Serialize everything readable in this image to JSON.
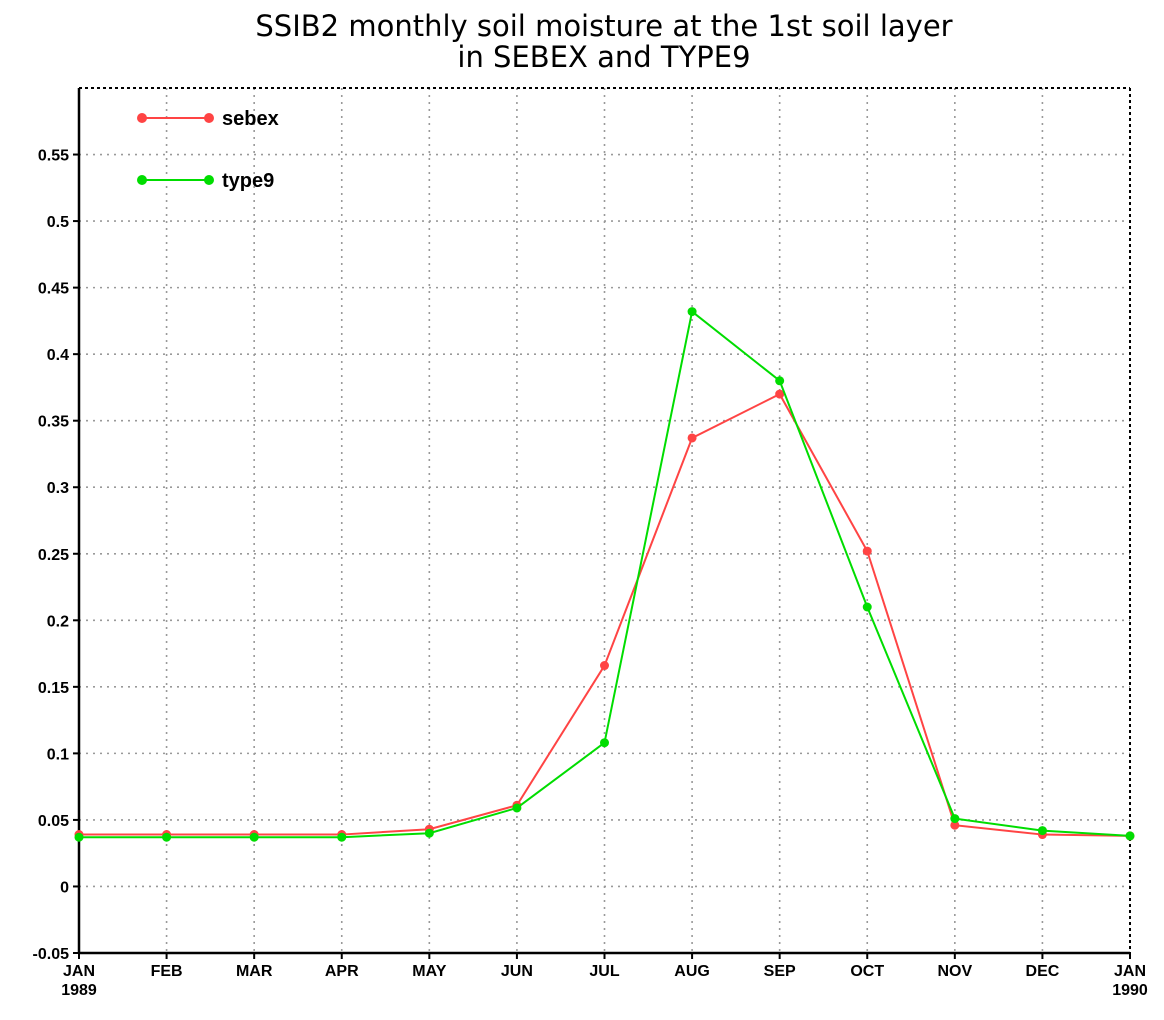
{
  "chart_data": {
    "type": "line",
    "title": "SSIB2 monthly soil moisture at the 1st soil layer",
    "subtitle": "in SEBEX and TYPE9",
    "xlabel": "",
    "ylabel": "",
    "categories": [
      "JAN",
      "FEB",
      "MAR",
      "APR",
      "MAY",
      "JUN",
      "JUL",
      "AUG",
      "SEP",
      "OCT",
      "NOV",
      "DEC",
      "JAN"
    ],
    "x_tick_years": {
      "0": "1989",
      "12": "1990"
    },
    "ylim": [
      -0.05,
      0.6
    ],
    "y_ticks": [
      -0.05,
      0,
      0.05,
      0.1,
      0.15,
      0.2,
      0.25,
      0.3,
      0.35,
      0.4,
      0.45,
      0.5,
      0.55
    ],
    "y_tick_labels": [
      "-0.05",
      "0",
      "0.05",
      "0.1",
      "0.15",
      "0.2",
      "0.25",
      "0.3",
      "0.35",
      "0.4",
      "0.45",
      "0.5",
      "0.55"
    ],
    "grid": true,
    "legend_position": "top-left",
    "series": [
      {
        "name": "sebex",
        "color": "#ff4444",
        "values": [
          0.039,
          0.039,
          0.039,
          0.039,
          0.043,
          0.061,
          0.166,
          0.337,
          0.37,
          0.252,
          0.046,
          0.039,
          0.038
        ]
      },
      {
        "name": "type9",
        "color": "#00dd00",
        "values": [
          0.037,
          0.037,
          0.037,
          0.037,
          0.04,
          0.059,
          0.108,
          0.432,
          0.38,
          0.21,
          0.051,
          0.042,
          0.038
        ]
      }
    ]
  }
}
